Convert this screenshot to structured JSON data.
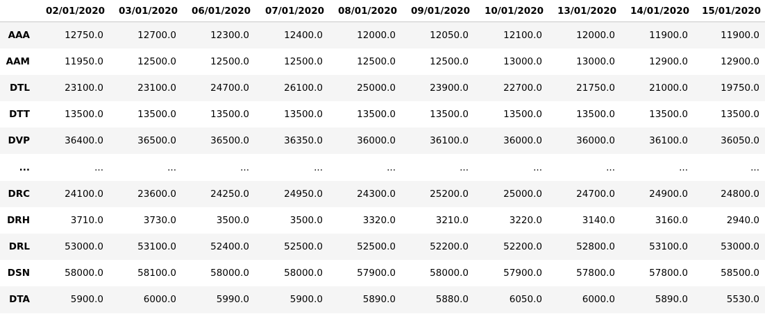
{
  "table": {
    "columns": [
      "02/01/2020",
      "03/01/2020",
      "06/01/2020",
      "07/01/2020",
      "08/01/2020",
      "09/01/2020",
      "10/01/2020",
      "13/01/2020",
      "14/01/2020",
      "15/01/2020"
    ],
    "rows": [
      {
        "index": "AAA",
        "values": [
          "12750.0",
          "12700.0",
          "12300.0",
          "12400.0",
          "12000.0",
          "12050.0",
          "12100.0",
          "12000.0",
          "11900.0",
          "11900.0"
        ]
      },
      {
        "index": "AAM",
        "values": [
          "11950.0",
          "12500.0",
          "12500.0",
          "12500.0",
          "12500.0",
          "12500.0",
          "13000.0",
          "13000.0",
          "12900.0",
          "12900.0"
        ]
      },
      {
        "index": "DTL",
        "values": [
          "23100.0",
          "23100.0",
          "24700.0",
          "26100.0",
          "25000.0",
          "23900.0",
          "22700.0",
          "21750.0",
          "21000.0",
          "19750.0"
        ]
      },
      {
        "index": "DTT",
        "values": [
          "13500.0",
          "13500.0",
          "13500.0",
          "13500.0",
          "13500.0",
          "13500.0",
          "13500.0",
          "13500.0",
          "13500.0",
          "13500.0"
        ]
      },
      {
        "index": "DVP",
        "values": [
          "36400.0",
          "36500.0",
          "36500.0",
          "36350.0",
          "36000.0",
          "36100.0",
          "36000.0",
          "36000.0",
          "36100.0",
          "36050.0"
        ]
      },
      {
        "index": "...",
        "values": [
          "...",
          "...",
          "...",
          "...",
          "...",
          "...",
          "...",
          "...",
          "...",
          "..."
        ]
      },
      {
        "index": "DRC",
        "values": [
          "24100.0",
          "23600.0",
          "24250.0",
          "24950.0",
          "24300.0",
          "25200.0",
          "25000.0",
          "24700.0",
          "24900.0",
          "24800.0"
        ]
      },
      {
        "index": "DRH",
        "values": [
          "3710.0",
          "3730.0",
          "3500.0",
          "3500.0",
          "3320.0",
          "3210.0",
          "3220.0",
          "3140.0",
          "3160.0",
          "2940.0"
        ]
      },
      {
        "index": "DRL",
        "values": [
          "53000.0",
          "53100.0",
          "52400.0",
          "52500.0",
          "52500.0",
          "52200.0",
          "52200.0",
          "52800.0",
          "53100.0",
          "53000.0"
        ]
      },
      {
        "index": "DSN",
        "values": [
          "58000.0",
          "58100.0",
          "58000.0",
          "58000.0",
          "57900.0",
          "58000.0",
          "57900.0",
          "57800.0",
          "57800.0",
          "58500.0"
        ]
      },
      {
        "index": "DTA",
        "values": [
          "5900.0",
          "6000.0",
          "5990.0",
          "5900.0",
          "5890.0",
          "5880.0",
          "6050.0",
          "6000.0",
          "5890.0",
          "5530.0"
        ]
      }
    ]
  }
}
